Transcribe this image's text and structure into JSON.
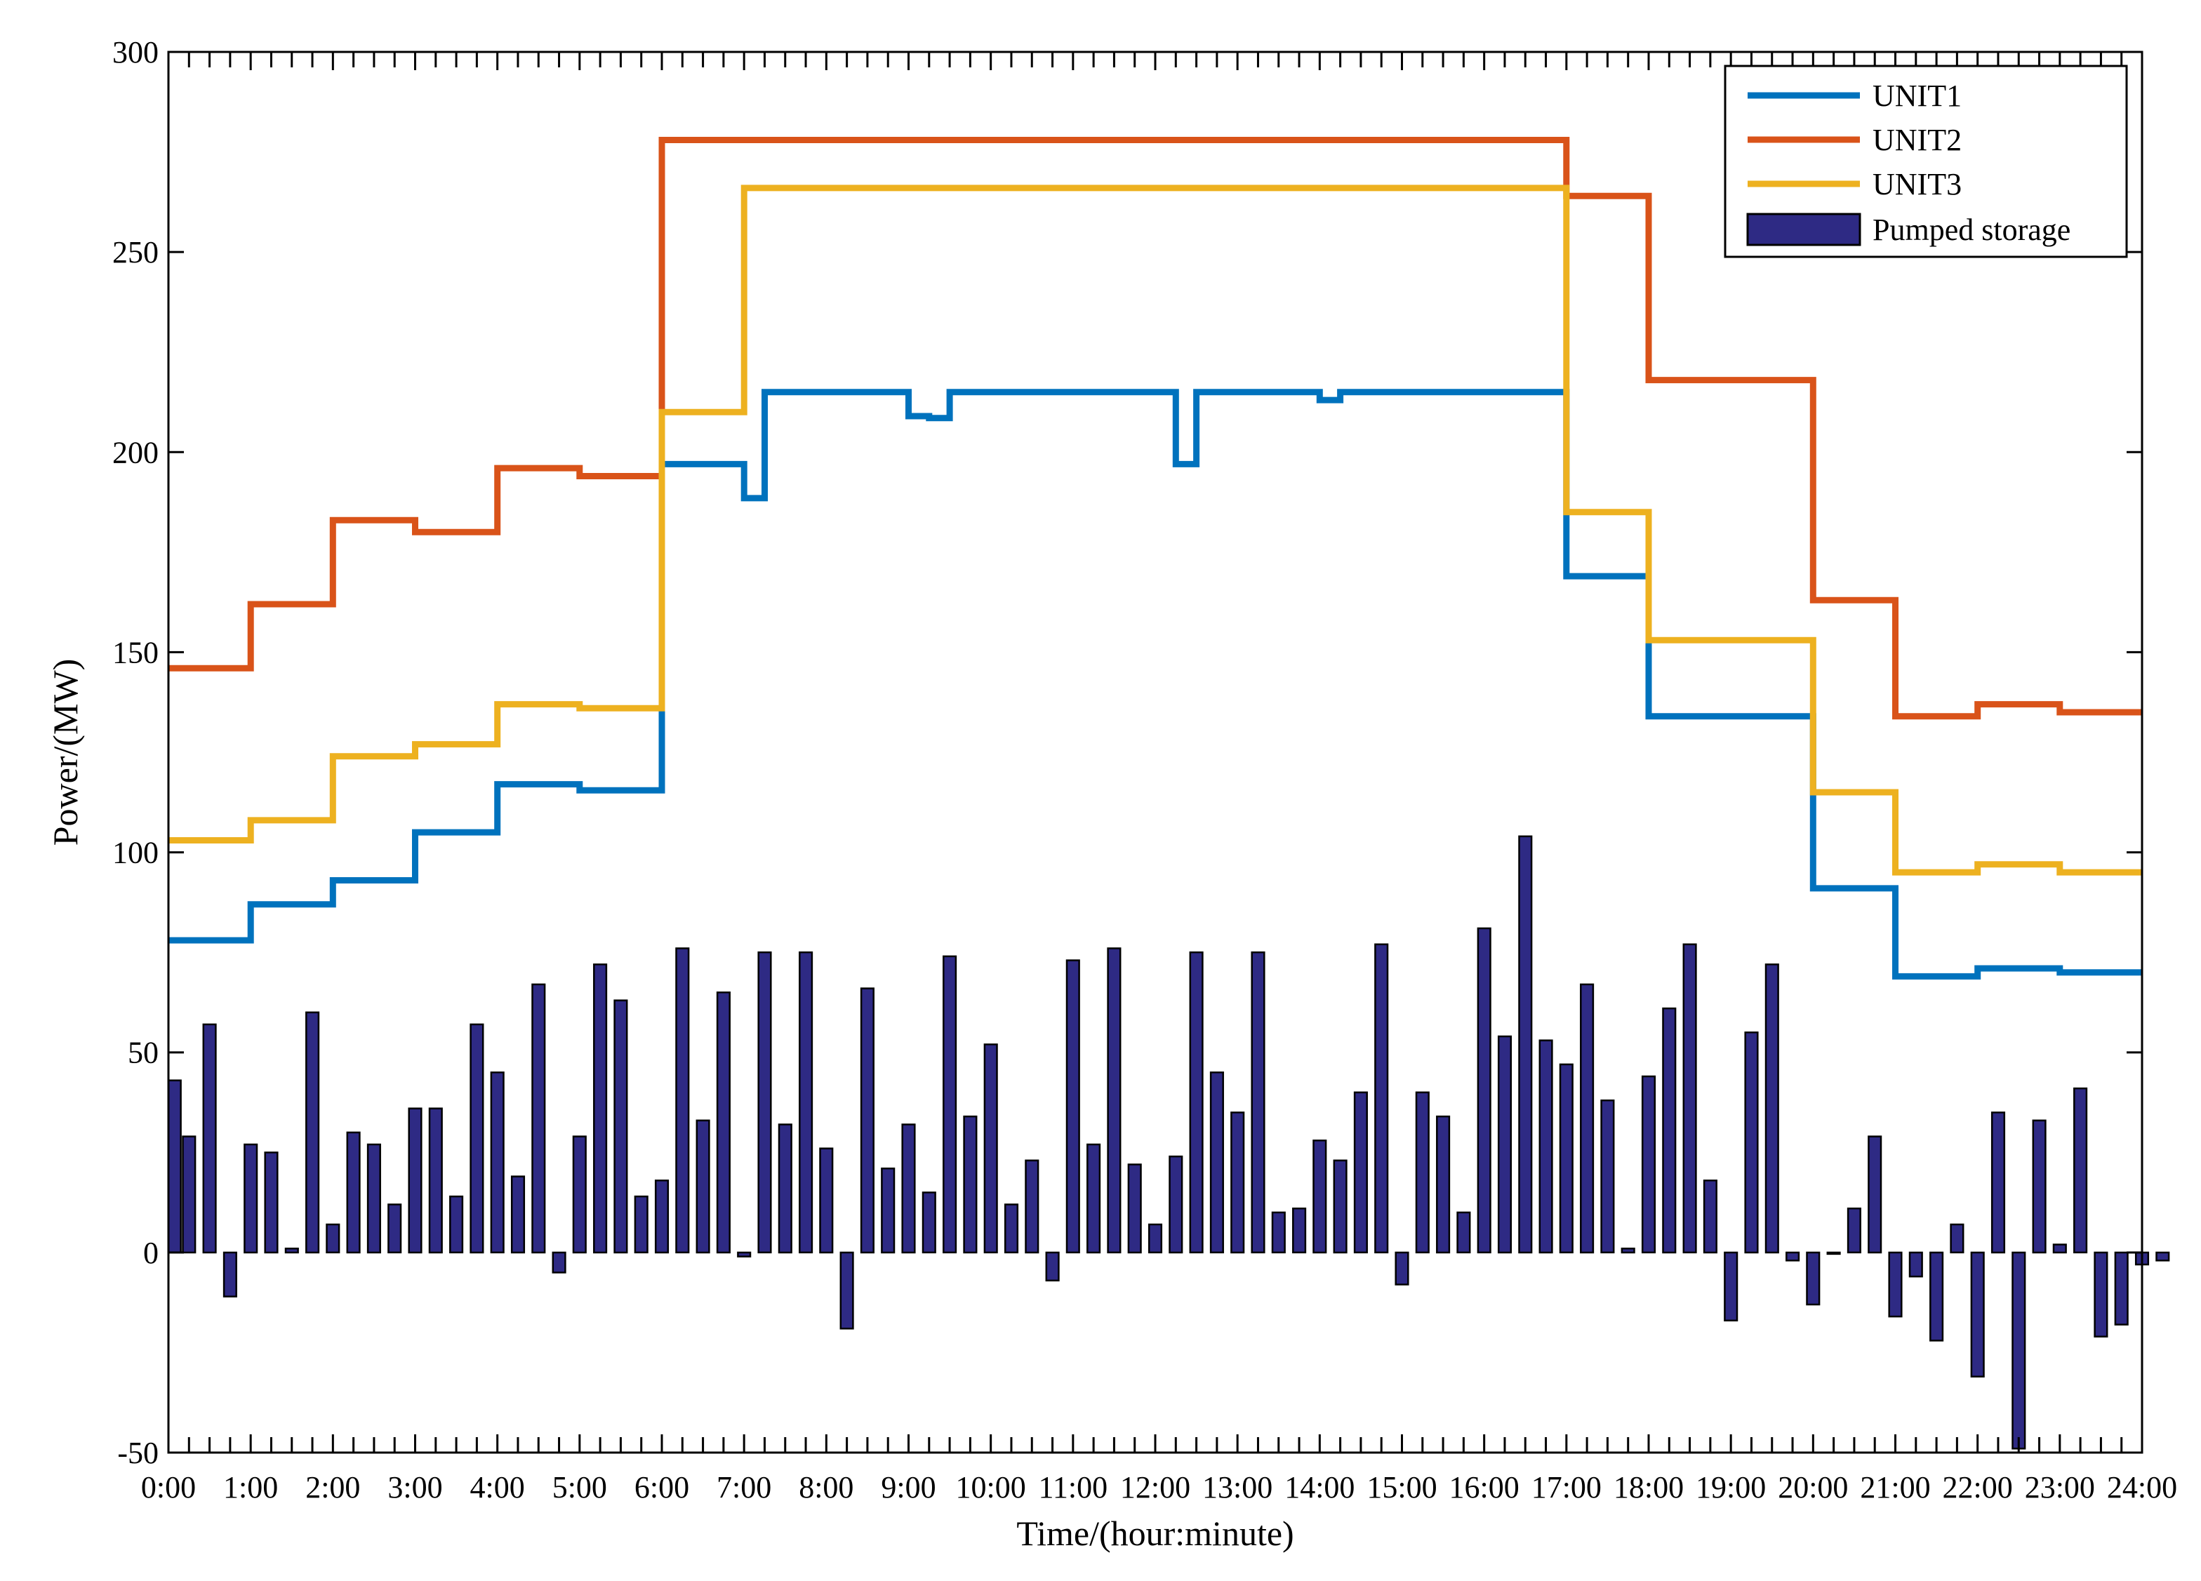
{
  "chart_data": {
    "type": "line",
    "xlabel": "Time/(hour:minute)",
    "ylabel": "Power/(MW)",
    "xlim": [
      0,
      24
    ],
    "ylim": [
      -50,
      300
    ],
    "yticks": [
      -50,
      0,
      50,
      100,
      150,
      200,
      250,
      300
    ],
    "xtick_labels": [
      "0:00",
      "1:00",
      "2:00",
      "3:00",
      "4:00",
      "5:00",
      "6:00",
      "7:00",
      "8:00",
      "9:00",
      "10:00",
      "11:00",
      "12:00",
      "13:00",
      "14:00",
      "15:00",
      "16:00",
      "17:00",
      "18:00",
      "19:00",
      "20:00",
      "21:00",
      "22:00",
      "23:00",
      "24:00"
    ],
    "grid": false,
    "legend_position": "top-right",
    "series": [
      {
        "name": "UNIT1",
        "kind": "step",
        "color": "#0072BD",
        "x_start": [
          0,
          1,
          2,
          3,
          4,
          5,
          6,
          7,
          7.25,
          9,
          9.25,
          9.5,
          12.25,
          12.5,
          14,
          14.25,
          17,
          18,
          20,
          21,
          22,
          23
        ],
        "values": [
          78,
          87,
          93,
          105,
          117,
          115.5,
          197,
          188.5,
          215,
          209,
          208.5,
          215,
          197,
          215,
          213,
          215,
          169,
          134,
          91,
          69,
          71,
          70
        ]
      },
      {
        "name": "UNIT2",
        "kind": "step",
        "color": "#D95319",
        "x_start": [
          0,
          1,
          2,
          3,
          4,
          5,
          6,
          17,
          18,
          20,
          21,
          22,
          23
        ],
        "values": [
          146,
          162,
          183,
          180,
          196,
          194,
          278,
          264,
          218,
          163,
          134,
          137,
          135
        ]
      },
      {
        "name": "UNIT3",
        "kind": "step",
        "color": "#EDB120",
        "x_start": [
          0,
          1,
          2,
          3,
          4,
          5,
          6,
          7,
          17,
          18,
          20,
          21,
          22,
          23
        ],
        "values": [
          103,
          108,
          124,
          127,
          137,
          136,
          210,
          266,
          185,
          153,
          115,
          95,
          97,
          95
        ]
      },
      {
        "name": "Pumped storage",
        "kind": "bar",
        "color": "#2E2A84",
        "bar_interval_hours": 0.25,
        "values": [
          43,
          29,
          57,
          -11,
          27,
          25,
          1,
          60,
          7,
          30,
          27,
          12,
          36,
          36,
          14,
          57,
          45,
          19,
          67,
          -5,
          29,
          72,
          63,
          14,
          18,
          76,
          33,
          65,
          -1,
          75,
          32,
          75,
          26,
          -19,
          66,
          21,
          32,
          15,
          74,
          34,
          52,
          12,
          23,
          -7,
          73,
          27,
          76,
          22,
          7,
          24,
          75,
          45,
          35,
          75,
          10,
          11,
          28,
          23,
          40,
          77,
          -8,
          40,
          34,
          10,
          81,
          54,
          104,
          53,
          47,
          67,
          38,
          1,
          44,
          61,
          77,
          18,
          -17,
          55,
          72,
          -2,
          -13,
          0,
          11,
          29,
          -16,
          -6,
          -22,
          7,
          -31,
          35,
          -49,
          33,
          2,
          41,
          -21,
          -18,
          -3,
          -2
        ]
      }
    ]
  }
}
